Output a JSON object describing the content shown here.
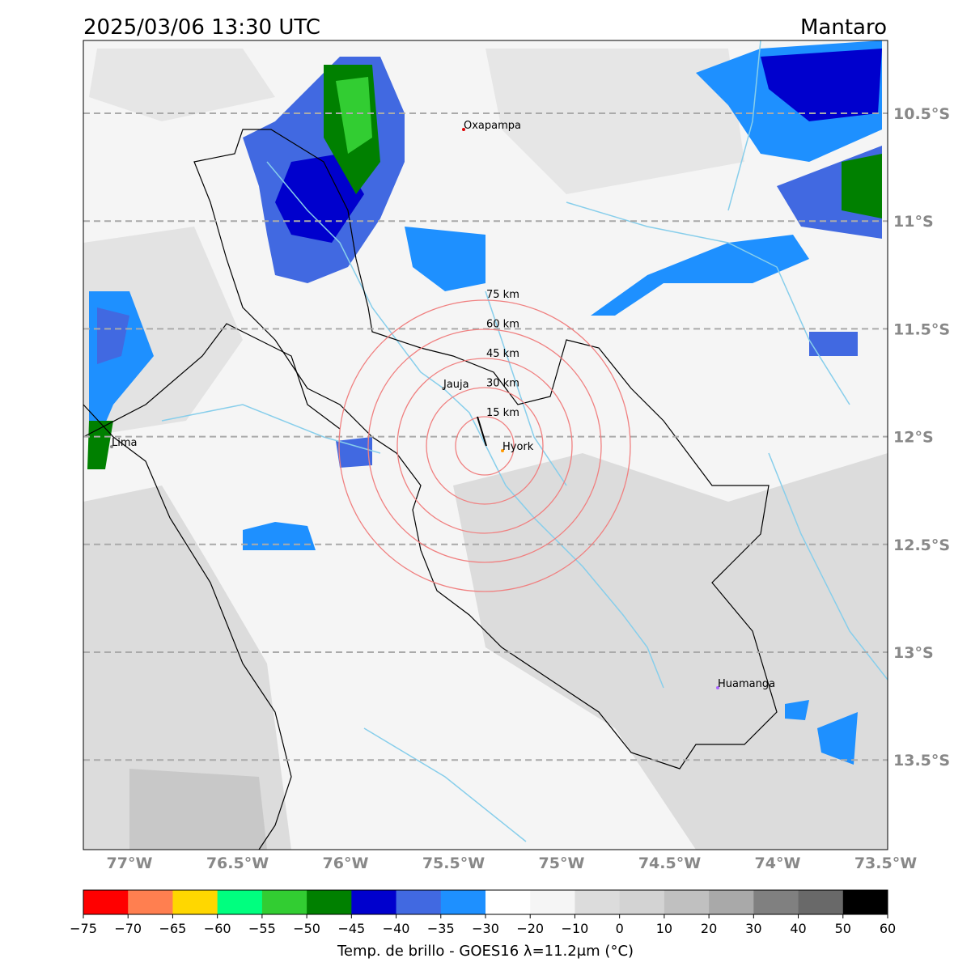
{
  "header": {
    "title": "2025/03/06 13:30 UTC",
    "region": "Mantaro"
  },
  "map": {
    "latitude_labels": [
      "10.5°S",
      "11°S",
      "11.5°S",
      "12°S",
      "12.5°S",
      "13°S",
      "13.5°S"
    ],
    "longitude_labels": [
      "77°W",
      "76.5°W",
      "76°W",
      "75.5°W",
      "75°W",
      "74.5°W",
      "74°W",
      "73.5°W"
    ],
    "ring_labels": [
      "15 km",
      "30 km",
      "45 km",
      "60 km",
      "75 km"
    ],
    "places": [
      "Oxapampa",
      "Jauja",
      "Hyork",
      "Lima",
      "Huamanga"
    ]
  },
  "colorbar": {
    "ticks": [
      "−75",
      "−70",
      "−65",
      "−60",
      "−55",
      "−50",
      "−45",
      "−40",
      "−35",
      "−30",
      "−20",
      "−10",
      "0",
      "10",
      "20",
      "30",
      "40",
      "50",
      "60"
    ],
    "colors": [
      "#ff0000",
      "#ff7f50",
      "#ffd700",
      "#00ff7f",
      "#32cd32",
      "#008000",
      "#0000cd",
      "#4169e1",
      "#1e90ff",
      "#ffffff",
      "#f5f5f5",
      "#dcdcdc",
      "#d3d3d3",
      "#c0c0c0",
      "#a9a9a9",
      "#808080",
      "#696969",
      "#000000"
    ],
    "label": "Temp. de brillo - GOES16 λ=11.2μm (°C)"
  }
}
